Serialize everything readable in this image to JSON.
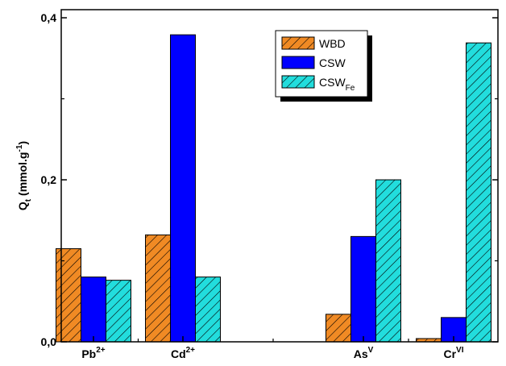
{
  "chart_data": {
    "type": "bar",
    "categories": [
      {
        "base": "Pb",
        "sup": "2+"
      },
      {
        "base": "Cd",
        "sup": "2+"
      },
      {
        "base": "As",
        "sup": "V"
      },
      {
        "base": "Cr",
        "sup": "VI"
      }
    ],
    "series": [
      {
        "name": "WBD",
        "name_sub": "",
        "color": "#f08a24",
        "pattern": "hatch",
        "values": [
          0.115,
          0.132,
          0.034,
          0.004
        ]
      },
      {
        "name": "CSW",
        "name_sub": "",
        "color": "#0000ff",
        "pattern": "solid",
        "values": [
          0.08,
          0.379,
          0.13,
          0.03
        ]
      },
      {
        "name": "CSW",
        "name_sub": "Fe",
        "color": "#22dddd",
        "pattern": "hatch",
        "values": [
          0.076,
          0.08,
          0.2,
          0.369
        ]
      }
    ],
    "ylabel": {
      "base": "Q",
      "sub": "t",
      "unit_open": " (mmol.g",
      "unit_sup": "-1",
      "unit_close": ")"
    },
    "yticks": [
      "0,0",
      "0,2",
      "0,4"
    ],
    "ytick_values": [
      0,
      0.2,
      0.4
    ],
    "ylim": [
      0,
      0.41
    ],
    "legend_position": "top-right",
    "grid": false
  }
}
